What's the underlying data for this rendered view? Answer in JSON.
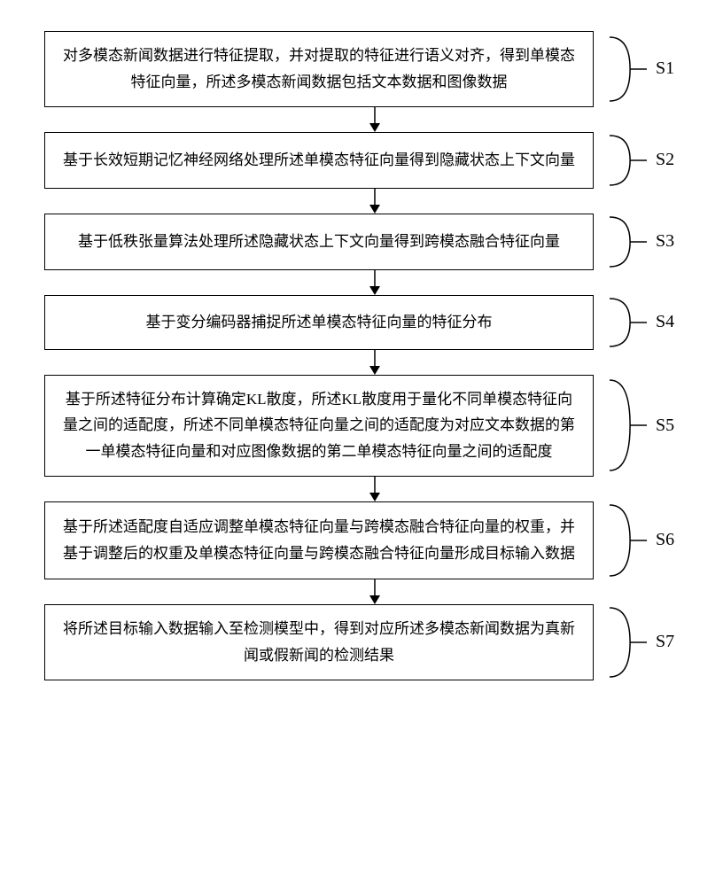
{
  "diagram": {
    "type": "flowchart",
    "background_color": "#ffffff",
    "box_border_color": "#000000",
    "box_border_width": 1.5,
    "text_color": "#000000",
    "font_size": 17,
    "label_font_size": 20,
    "arrow_color": "#000000",
    "arrow_height": 28,
    "curve_stroke": "#000000",
    "steps": [
      {
        "label": "S1",
        "text": "对多模态新闻数据进行特征提取，并对提取的特征进行语义对齐，得到单模态特征向量，所述多模态新闻数据包括文本数据和图像数据",
        "min_height": 80
      },
      {
        "label": "S2",
        "text": "基于长效短期记忆神经网络处理所述单模态特征向量得到隐藏状态上下文向量",
        "min_height": 64
      },
      {
        "label": "S3",
        "text": "基于低秩张量算法处理所述隐藏状态上下文向量得到跨模态融合特征向量",
        "min_height": 64
      },
      {
        "label": "S4",
        "text": "基于变分编码器捕捉所述单模态特征向量的特征分布",
        "min_height": 62
      },
      {
        "label": "S5",
        "text": "基于所述特征分布计算确定KL散度，所述KL散度用于量化不同单模态特征向量之间的适配度，所述不同单模态特征向量之间的适配度为对应文本数据的第一单模态特征向量和对应图像数据的第二单模态特征向量之间的适配度",
        "min_height": 110
      },
      {
        "label": "S6",
        "text": "基于所述适配度自适应调整单模态特征向量与跨模态融合特征向量的权重，并基于调整后的权重及单模态特征向量与跨模态融合特征向量形成目标输入数据",
        "min_height": 88
      },
      {
        "label": "S7",
        "text": "将所述目标输入数据输入至检测模型中，得到对应所述多模态新闻数据为真新闻或假新闻的检测结果",
        "min_height": 86
      }
    ]
  }
}
